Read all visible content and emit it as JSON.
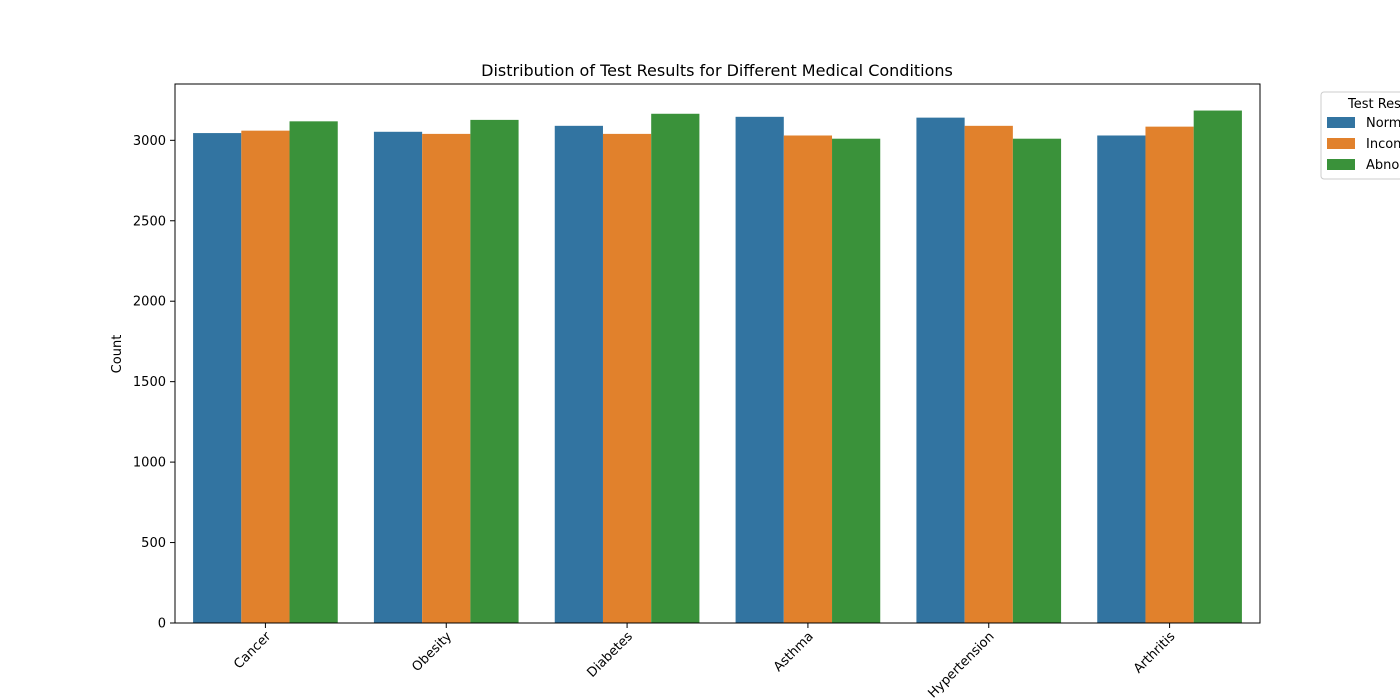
{
  "chart_data": {
    "type": "bar",
    "title": "Distribution of Test Results for Different Medical Conditions",
    "xlabel": "",
    "ylabel": "Count",
    "ylim": [
      0,
      3350
    ],
    "yticks": [
      0,
      500,
      1000,
      1500,
      2000,
      2500,
      3000
    ],
    "categories": [
      "Cancer",
      "Obesity",
      "Diabetes",
      "Asthma",
      "Hypertension",
      "Arthritis"
    ],
    "legend_title": "Test Results",
    "legend_position": "outside-top-right",
    "grid": false,
    "series": [
      {
        "name": "Normal",
        "color": "#3274a1",
        "values": [
          3045,
          3053,
          3090,
          3146,
          3141,
          3030
        ]
      },
      {
        "name": "Inconclusive",
        "color": "#e1812c",
        "values": [
          3060,
          3040,
          3040,
          3030,
          3090,
          3085
        ]
      },
      {
        "name": "Abnormal",
        "color": "#3a923a",
        "values": [
          3118,
          3127,
          3165,
          3010,
          3010,
          3185
        ]
      }
    ]
  }
}
